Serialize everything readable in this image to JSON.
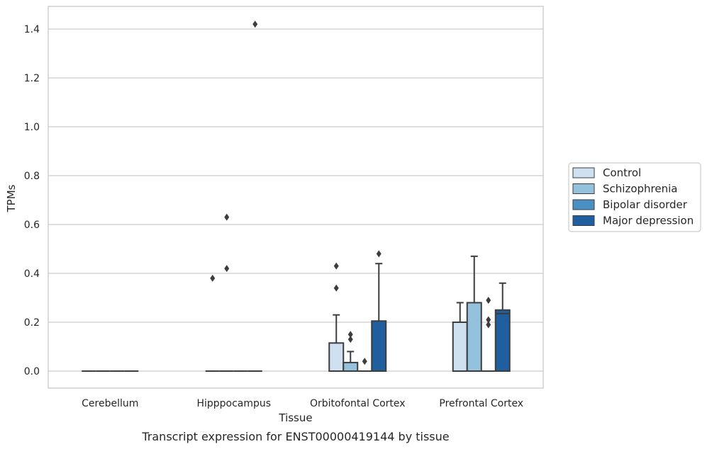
{
  "chart_data": {
    "type": "box",
    "caption": "Transcript expression for ENST00000419144 by tissue",
    "xlabel": "Tissue",
    "ylabel": "TPMs",
    "ylim": [
      -0.07,
      1.49
    ],
    "yticks": [
      0.0,
      0.2,
      0.4,
      0.6,
      0.8,
      1.0,
      1.2,
      1.4
    ],
    "ytick_labels": [
      "0.0",
      "0.2",
      "0.4",
      "0.6",
      "0.8",
      "1.0",
      "1.2",
      "1.4"
    ],
    "grid": true,
    "legend_position": "right",
    "categories": [
      "Cerebellum",
      "Hipppocampus",
      "Orbitofontal Cortex",
      "Prefrontal Cortex"
    ],
    "series": [
      {
        "name": "Control",
        "color": "#cfe0f1",
        "boxes": [
          {
            "q1": 0,
            "median": 0,
            "q3": 0,
            "whisker_low": 0,
            "whisker_high": 0,
            "outliers": []
          },
          {
            "q1": 0,
            "median": 0,
            "q3": 0,
            "whisker_low": 0,
            "whisker_high": 0,
            "outliers": [
              0.38
            ]
          },
          {
            "q1": 0,
            "median": 0,
            "q3": 0.115,
            "whisker_low": 0,
            "whisker_high": 0.23,
            "outliers": [
              0.34,
              0.43
            ]
          },
          {
            "q1": 0,
            "median": 0,
            "q3": 0.2,
            "whisker_low": 0,
            "whisker_high": 0.28,
            "outliers": []
          }
        ]
      },
      {
        "name": "Schizophrenia",
        "color": "#94c1dc",
        "boxes": [
          {
            "q1": 0,
            "median": 0,
            "q3": 0,
            "whisker_low": 0,
            "whisker_high": 0,
            "outliers": []
          },
          {
            "q1": 0,
            "median": 0,
            "q3": 0,
            "whisker_low": 0,
            "whisker_high": 0,
            "outliers": [
              0.42,
              0.63
            ]
          },
          {
            "q1": 0,
            "median": 0,
            "q3": 0.035,
            "whisker_low": 0,
            "whisker_high": 0.08,
            "outliers": [
              0.13,
              0.15
            ]
          },
          {
            "q1": 0,
            "median": 0,
            "q3": 0.28,
            "whisker_low": 0,
            "whisker_high": 0.47,
            "outliers": []
          }
        ]
      },
      {
        "name": "Bipolar disorder",
        "color": "#4a90c2",
        "boxes": [
          {
            "q1": 0,
            "median": 0,
            "q3": 0,
            "whisker_low": 0,
            "whisker_high": 0,
            "outliers": []
          },
          {
            "q1": 0,
            "median": 0,
            "q3": 0,
            "whisker_low": 0,
            "whisker_high": 0,
            "outliers": []
          },
          {
            "q1": 0,
            "median": 0,
            "q3": 0,
            "whisker_low": 0,
            "whisker_high": 0,
            "outliers": [
              0.04
            ]
          },
          {
            "q1": 0,
            "median": 0,
            "q3": 0,
            "whisker_low": 0,
            "whisker_high": 0,
            "outliers": [
              0.19,
              0.21,
              0.29
            ]
          }
        ]
      },
      {
        "name": "Major depression",
        "color": "#1f5fa0",
        "boxes": [
          {
            "q1": 0,
            "median": 0,
            "q3": 0,
            "whisker_low": 0,
            "whisker_high": 0,
            "outliers": []
          },
          {
            "q1": 0,
            "median": 0,
            "q3": 0,
            "whisker_low": 0,
            "whisker_high": 0,
            "outliers": [
              1.42
            ]
          },
          {
            "q1": 0,
            "median": 0,
            "q3": 0.205,
            "whisker_low": 0,
            "whisker_high": 0.44,
            "outliers": [
              0.48
            ]
          },
          {
            "q1": 0,
            "median": 0.235,
            "q3": 0.25,
            "whisker_low": 0,
            "whisker_high": 0.36,
            "outliers": []
          }
        ]
      }
    ]
  }
}
